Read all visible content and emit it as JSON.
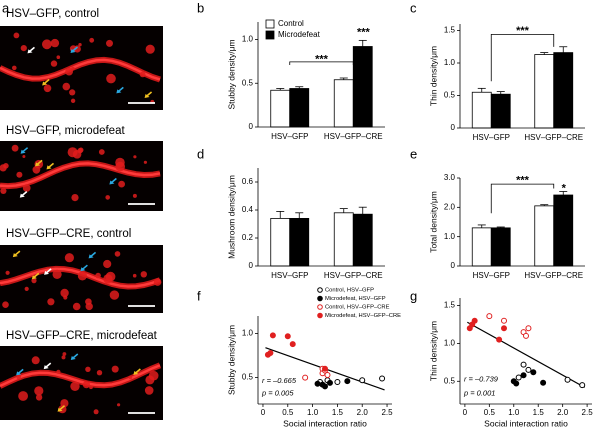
{
  "panel_a": {
    "letter": "a",
    "labels": [
      "HSV–GFP, control",
      "HSV–GFP, microdefeat",
      "HSV–GFP–CRE, control",
      "HSV–GFP–CRE, microdefeat"
    ]
  },
  "chart_data": [
    {
      "panel": "b",
      "type": "bar",
      "y_label": "Stubby density/μm",
      "categories": [
        "HSV–GFP",
        "HSV–GFP–CRE"
      ],
      "series": [
        {
          "name": "Control",
          "color": "#ffffff",
          "values": [
            0.42,
            0.54
          ],
          "errors": [
            0.02,
            0.02
          ]
        },
        {
          "name": "Microdefeat",
          "color": "#000000",
          "values": [
            0.44,
            0.92
          ],
          "errors": [
            0.02,
            0.07
          ]
        }
      ],
      "ylim": [
        0,
        1.2
      ],
      "yticks": [
        0,
        0.5,
        {
          "value": 1,
          "label": "1.0"
        }
      ],
      "legend": "upper left",
      "annotations": [
        "***",
        "***"
      ]
    },
    {
      "panel": "c",
      "type": "bar",
      "y_label": "Thin density/μm",
      "categories": [
        "HSV–GFP",
        "HSV–GFP–CRE"
      ],
      "series": [
        {
          "name": "Control",
          "color": "#ffffff",
          "values": [
            0.55,
            1.13
          ],
          "errors": [
            0.06,
            0.03
          ]
        },
        {
          "name": "Microdefeat",
          "color": "#000000",
          "values": [
            0.52,
            1.16
          ],
          "errors": [
            0.04,
            0.09
          ]
        }
      ],
      "ylim": [
        0,
        1.6
      ],
      "yticks": [
        0,
        0.5,
        {
          "value": 1,
          "label": "1.0"
        },
        1.5
      ],
      "annotations": [
        "***"
      ]
    },
    {
      "panel": "d",
      "type": "bar",
      "y_label": "Mushroom density/μm",
      "categories": [
        "HSV–GFP",
        "HSV–GFP–CRE"
      ],
      "series": [
        {
          "name": "Control",
          "color": "#ffffff",
          "values": [
            0.34,
            0.38
          ],
          "errors": [
            0.05,
            0.03
          ]
        },
        {
          "name": "Microdefeat",
          "color": "#000000",
          "values": [
            0.34,
            0.37
          ],
          "errors": [
            0.04,
            0.05
          ]
        }
      ],
      "ylim": [
        0,
        0.7
      ],
      "yticks": [
        0,
        0.2,
        0.4,
        0.6
      ]
    },
    {
      "panel": "e",
      "type": "bar",
      "y_label": "Total density/μm",
      "categories": [
        "HSV–GFP",
        "HSV–GFP–CRE"
      ],
      "series": [
        {
          "name": "Control",
          "color": "#ffffff",
          "values": [
            1.3,
            2.05
          ],
          "errors": [
            0.1,
            0.04
          ]
        },
        {
          "name": "Microdefeat",
          "color": "#000000",
          "values": [
            1.3,
            2.42
          ],
          "errors": [
            0.03,
            0.12
          ]
        }
      ],
      "ylim": [
        0,
        3
      ],
      "yticks": [
        0,
        {
          "value": 1,
          "label": "1.0"
        },
        {
          "value": 2,
          "label": "2.0"
        },
        {
          "value": 3,
          "label": "3.0"
        }
      ],
      "annotations": [
        "***",
        "*"
      ]
    },
    {
      "panel": "f",
      "type": "scatter",
      "x_label": "Social interaction ratio",
      "y_label": "Stubby density/μm",
      "series": [
        {
          "name": "Control, HSV–GFP",
          "color": "#000000",
          "marker": "open",
          "x": [
            1.15,
            1.3,
            1.5,
            2.0,
            2.4
          ],
          "values": [
            0.45,
            0.47,
            0.45,
            0.47,
            0.49
          ]
        },
        {
          "name": "Microdefeat, HSV–GFP",
          "color": "#000000",
          "marker": "filled",
          "x": [
            1.1,
            1.2,
            1.25,
            1.35,
            1.7
          ],
          "values": [
            0.43,
            0.42,
            0.4,
            0.44,
            0.46
          ]
        },
        {
          "name": "Control, HSV–GFP–CRE",
          "color": "#e02020",
          "marker": "open",
          "x": [
            0.85,
            1.2,
            1.2,
            1.25,
            1.3
          ],
          "values": [
            0.5,
            0.55,
            0.6,
            0.58,
            0.53
          ]
        },
        {
          "name": "Microdefeat, HSV–GFP–CRE",
          "color": "#e02020",
          "marker": "filled",
          "x": [
            0.1,
            0.15,
            0.2,
            0.5,
            0.6,
            1.25
          ],
          "values": [
            0.76,
            0.78,
            0.98,
            0.97,
            0.88,
            0.6
          ]
        }
      ],
      "fit": {
        "x": [
          0.05,
          2.45
        ],
        "y": [
          0.84,
          0.36
        ]
      },
      "xlim": [
        -0.1,
        2.6
      ],
      "xticks": [
        0,
        0.5,
        {
          "value": 1,
          "label": "1.0"
        },
        1.5,
        {
          "value": 2,
          "label": "2.0"
        },
        2.5
      ],
      "ylim": [
        0.2,
        1.2
      ],
      "yticks": [
        0.5,
        {
          "value": 1,
          "label": "1.0"
        }
      ],
      "legend": "upper right",
      "annotations": [
        "r = –0.665",
        "p = 0.005"
      ]
    },
    {
      "panel": "g",
      "type": "scatter",
      "x_label": "Social interaction ratio",
      "y_label": "Thin density/μm",
      "series": [
        {
          "name": "Control, HSV–GFP",
          "color": "#000000",
          "marker": "open",
          "x": [
            1.1,
            1.2,
            1.3,
            2.1,
            2.4
          ],
          "values": [
            0.55,
            0.72,
            0.65,
            0.52,
            0.45
          ]
        },
        {
          "name": "Microdefeat, HSV–GFP",
          "color": "#000000",
          "marker": "filled",
          "x": [
            1.0,
            1.05,
            1.2,
            1.4,
            1.6
          ],
          "values": [
            0.5,
            0.47,
            0.58,
            0.62,
            0.48
          ]
        },
        {
          "name": "Control, HSV–GFP–CRE",
          "color": "#e02020",
          "marker": "open",
          "x": [
            0.5,
            0.8,
            1.2,
            1.25,
            1.3
          ],
          "values": [
            1.36,
            1.3,
            1.15,
            1.1,
            1.2
          ]
        },
        {
          "name": "Microdefeat, HSV–GFP–CRE",
          "color": "#e02020",
          "marker": "filled",
          "x": [
            0.1,
            0.15,
            0.2,
            0.7,
            0.8
          ],
          "values": [
            1.2,
            1.25,
            1.3,
            1.05,
            1.2
          ]
        }
      ],
      "fit": {
        "x": [
          0.05,
          2.45
        ],
        "y": [
          1.28,
          0.42
        ]
      },
      "xlim": [
        -0.1,
        2.6
      ],
      "xticks": [
        0,
        0.5,
        {
          "value": 1,
          "label": "1.0"
        },
        1.5,
        {
          "value": 2,
          "label": "2.0"
        },
        2.5
      ],
      "ylim": [
        0.2,
        1.6
      ],
      "yticks": [
        0.5,
        {
          "value": 1,
          "label": "1.0"
        },
        1.5
      ],
      "annotations": [
        "r = –0.739",
        "p = 0.001"
      ]
    }
  ]
}
